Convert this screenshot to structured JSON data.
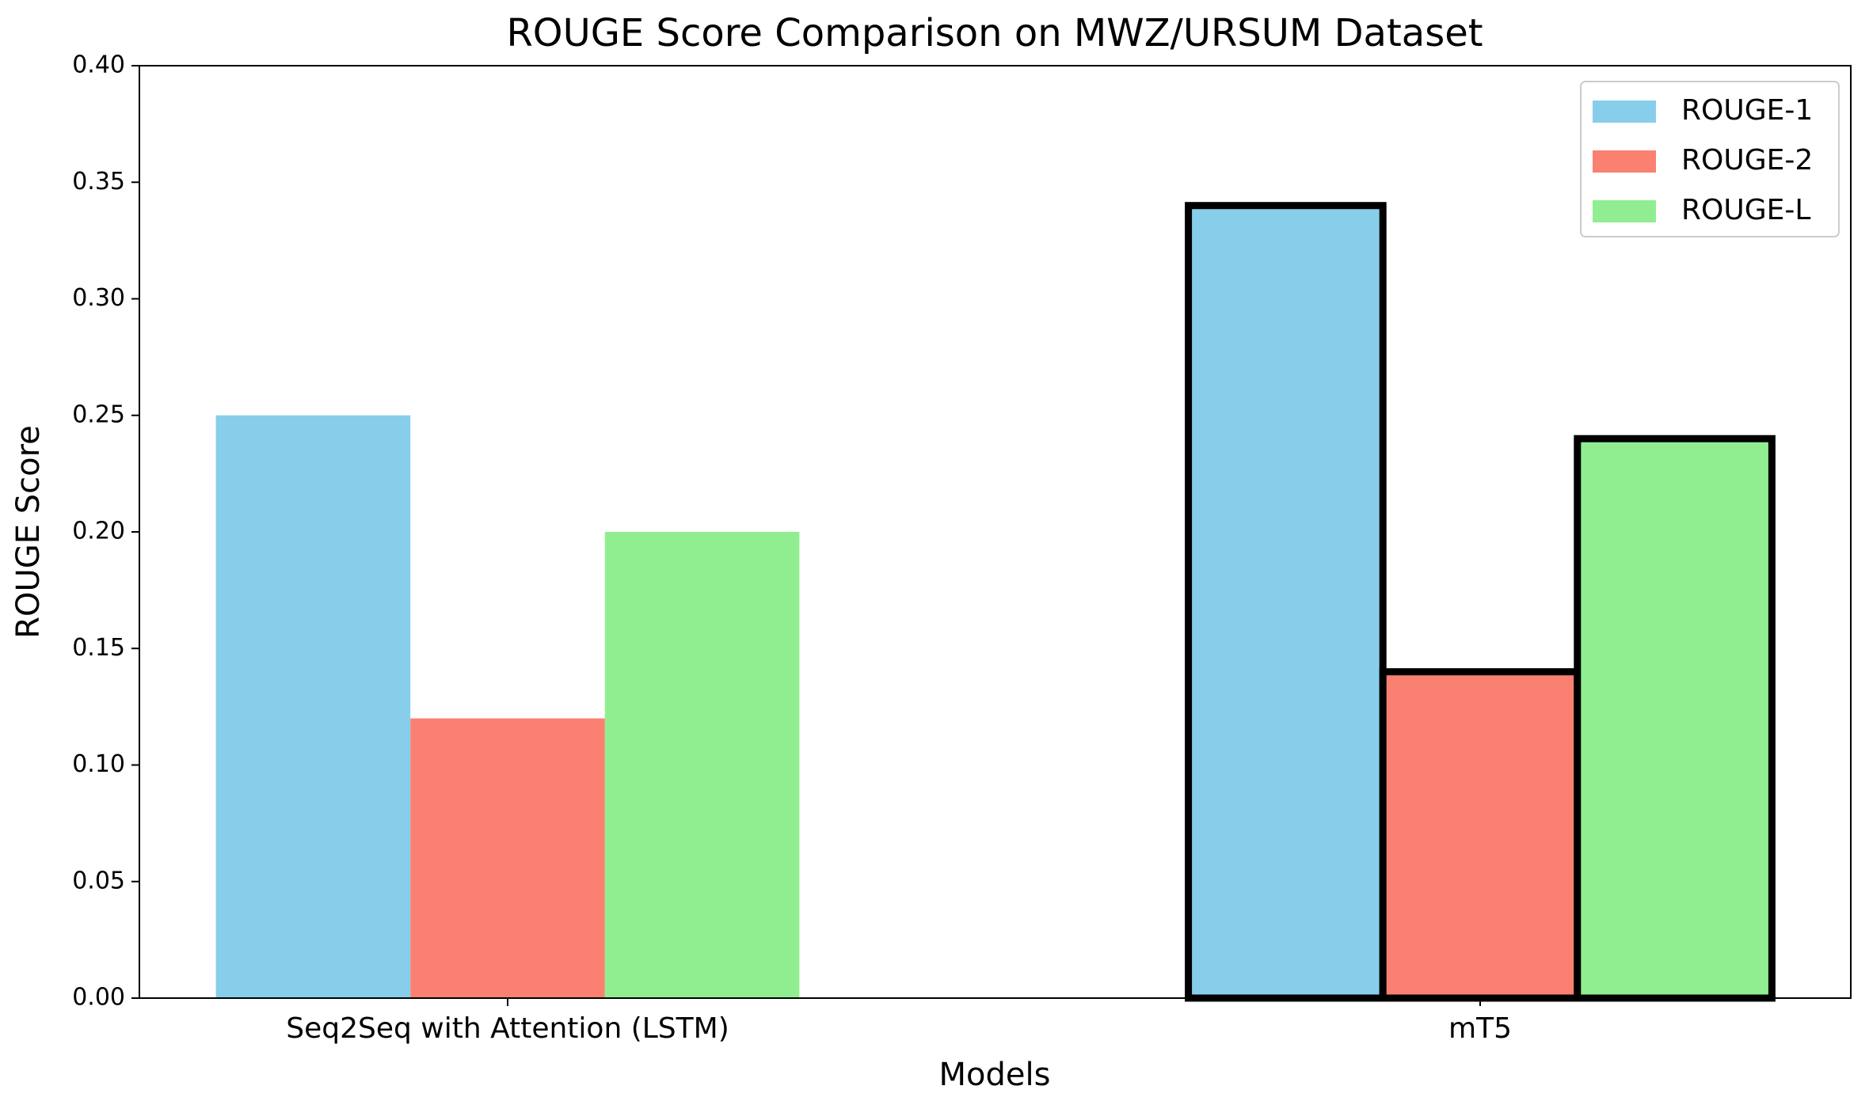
{
  "chart_data": {
    "type": "bar",
    "title": "ROUGE Score Comparison on MWZ/URSUM Dataset",
    "x_label": "Models",
    "y_label": "ROUGE Score",
    "categories": [
      "Seq2Seq with Attention (LSTM)",
      "mT5"
    ],
    "series": [
      {
        "name": "ROUGE-1",
        "color": "#87ceeb",
        "values": [
          0.25,
          0.34
        ]
      },
      {
        "name": "ROUGE-2",
        "color": "#fa8072",
        "values": [
          0.12,
          0.14
        ]
      },
      {
        "name": "ROUGE-L",
        "color": "#90ee90",
        "values": [
          0.2,
          0.24
        ]
      }
    ],
    "ylim": [
      0,
      0.4
    ],
    "yticks": [
      {
        "value": 0,
        "label": "0.00"
      },
      {
        "value": 0.05,
        "label": "0.05"
      },
      {
        "value": 0.1,
        "label": "0.10"
      },
      {
        "value": 0.15,
        "label": "0.15"
      },
      {
        "value": 0.2,
        "label": "0.20"
      },
      {
        "value": 0.25,
        "label": "0.25"
      },
      {
        "value": 0.3,
        "label": "0.30"
      },
      {
        "value": 0.35,
        "label": "0.35"
      },
      {
        "value": 0.4,
        "label": "0.40"
      }
    ],
    "grid": false,
    "legend": "upper right",
    "highlight": {
      "category_index": 1,
      "edgecolor": "#000000"
    }
  }
}
